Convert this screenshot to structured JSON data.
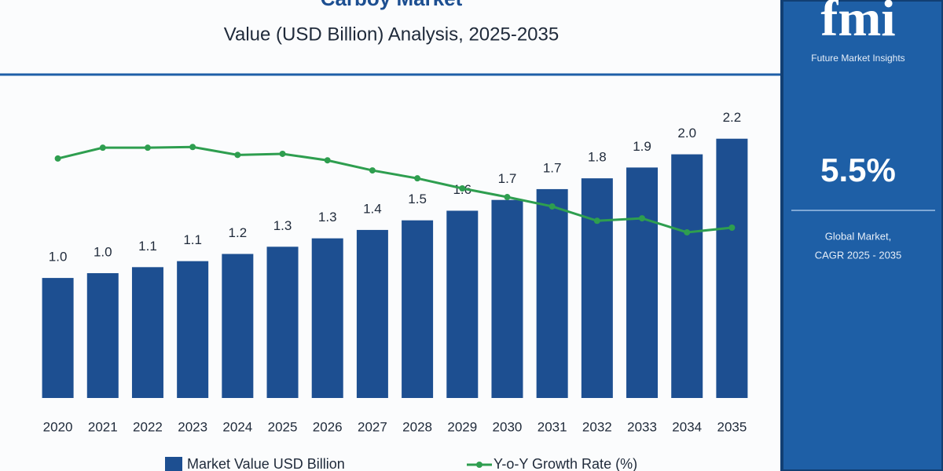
{
  "chart_data": {
    "type": "bar",
    "title": "Carboy Market",
    "subtitle": "Value (USD Billion) Analysis, 2025-2035",
    "categories": [
      "2020",
      "2021",
      "2022",
      "2023",
      "2024",
      "2025",
      "2026",
      "2027",
      "2028",
      "2029",
      "2030",
      "2031",
      "2032",
      "2033",
      "2034",
      "2035"
    ],
    "series": [
      {
        "name": "Market Value USD Billion",
        "type": "bar",
        "color": "#1d4f91",
        "values": [
          1.0,
          1.04,
          1.09,
          1.14,
          1.2,
          1.26,
          1.33,
          1.4,
          1.48,
          1.56,
          1.65,
          1.74,
          1.83,
          1.92,
          2.03,
          2.16
        ],
        "value_labels": [
          "1.0",
          "1.0",
          "1.1",
          "1.1",
          "1.2",
          "1.3",
          "1.3",
          "1.4",
          "1.5",
          "1.6",
          "1.7",
          "1.7",
          "1.8",
          "1.9",
          "2.0",
          "2.2"
        ]
      },
      {
        "name": "Y-o-Y Growth Rate (%)",
        "type": "line",
        "color": "#2e9e4f",
        "axis": "y2",
        "values": [
          6.65,
          6.95,
          6.95,
          6.97,
          6.75,
          6.78,
          6.6,
          6.32,
          6.1,
          5.82,
          5.58,
          5.32,
          4.92,
          4.99,
          4.6,
          4.73
        ]
      }
    ],
    "ylim": [
      0,
      2.4
    ],
    "y2lim": [
      0,
      8
    ]
  },
  "sidebar": {
    "logo": "fmi",
    "logo_caption": "Future Market Insights",
    "cagr": "5.5%",
    "caption": [
      "Global Market,",
      "CAGR 2025 - 2035"
    ]
  }
}
